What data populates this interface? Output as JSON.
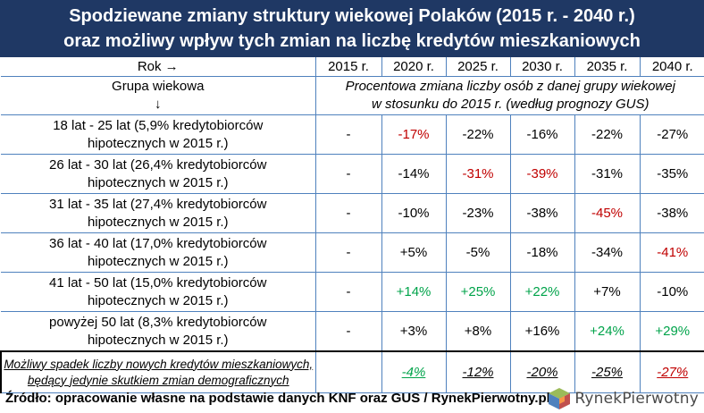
{
  "title": {
    "line1": "Spodziewane zmiany struktury wiekowej Polaków (2015 r. - 2040 r.)",
    "line2": "oraz możliwy wpływ tych zmian na liczbę kredytów mieszkaniowych"
  },
  "header": {
    "rok_label": "Rok →",
    "grupa_label": "Grupa wiekowa",
    "grupa_arrow": "↓",
    "years": [
      "2015 r.",
      "2020 r.",
      "2025 r.",
      "2030 r.",
      "2035 r.",
      "2040 r."
    ],
    "subtitle_line1": "Procentowa zmiana liczby osób z danej grupy wiekowej",
    "subtitle_line2": "w stosunku do 2015 r. (według prognozy GUS)"
  },
  "rows": [
    {
      "label1": "18 lat - 25 lat (5,9% kredytobiorców",
      "label2": "hipotecznych w 2015 r.)",
      "cells": [
        "-",
        "-17%",
        "-22%",
        "-16%",
        "-22%",
        "-27%"
      ]
    },
    {
      "label1": "26 lat - 30 lat (26,4% kredytobiorców",
      "label2": "hipotecznych w 2015 r.)",
      "cells": [
        "-",
        "-14%",
        "-31%",
        "-39%",
        "-31%",
        "-35%"
      ]
    },
    {
      "label1": "31 lat - 35 lat (27,4% kredytobiorców",
      "label2": "hipotecznych w 2015 r.)",
      "cells": [
        "-",
        "-10%",
        "-23%",
        "-38%",
        "-45%",
        "-38%"
      ]
    },
    {
      "label1": "36 lat - 40 lat (17,0% kredytobiorców",
      "label2": "hipotecznych w 2015 r.)",
      "cells": [
        "-",
        "+5%",
        "-5%",
        "-18%",
        "-34%",
        "-41%"
      ]
    },
    {
      "label1": "41 lat - 50 lat (15,0% kredytobiorców",
      "label2": "hipotecznych w 2015 r.)",
      "cells": [
        "-",
        "+14%",
        "+25%",
        "+22%",
        "+7%",
        "-10%"
      ]
    },
    {
      "label1": "powyżej 50 lat (8,3% kredytobiorców",
      "label2": "hipotecznych w 2015 r.)",
      "cells": [
        "-",
        "+3%",
        "+8%",
        "+16%",
        "+24%",
        "+29%"
      ]
    }
  ],
  "loss_row": {
    "label1": "Możliwy spadek liczby nowych kredytów mieszkaniowych,",
    "label2": "będący jedynie skutkiem zmian demograficznych",
    "cells": [
      "",
      "-4%",
      "-12%",
      "-20%",
      "-25%",
      "-27%"
    ]
  },
  "footer": {
    "source": "Źródło: opracowanie własne na podstawie danych KNF oraz GUS / RynekPierwotny.pl",
    "logo_text": "RynekPierwotny"
  },
  "colors": {
    "title_bg": "#1f3864",
    "grid_line": "#4f81bd",
    "highlight_red": "#c00000",
    "highlight_green": "#00a34a"
  },
  "highlights": {
    "red": [
      [
        0,
        1
      ],
      [
        1,
        2
      ],
      [
        1,
        3
      ],
      [
        2,
        4
      ],
      [
        3,
        5
      ],
      [
        6,
        5
      ]
    ],
    "green": [
      [
        4,
        1
      ],
      [
        4,
        2
      ],
      [
        4,
        3
      ],
      [
        5,
        4
      ],
      [
        5,
        5
      ],
      [
        6,
        1
      ]
    ]
  },
  "chart_data": {
    "type": "table",
    "title": "Spodziewane zmiany struktury wiekowej Polaków (2015 r. - 2040 r.) oraz możliwy wpływ tych zmian na liczbę kredytów mieszkaniowych",
    "columns": [
      "2015 r.",
      "2020 r.",
      "2025 r.",
      "2030 r.",
      "2035 r.",
      "2040 r."
    ],
    "series": [
      {
        "name": "18 lat - 25 lat",
        "values": [
          null,
          -17,
          -22,
          -16,
          -22,
          -27
        ]
      },
      {
        "name": "26 lat - 30 lat",
        "values": [
          null,
          -14,
          -31,
          -39,
          -31,
          -35
        ]
      },
      {
        "name": "31 lat - 35 lat",
        "values": [
          null,
          -10,
          -23,
          -38,
          -45,
          -38
        ]
      },
      {
        "name": "36 lat - 40 lat",
        "values": [
          null,
          5,
          -5,
          -18,
          -34,
          -41
        ]
      },
      {
        "name": "41 lat - 50 lat",
        "values": [
          null,
          14,
          25,
          22,
          7,
          -10
        ]
      },
      {
        "name": "powyżej 50 lat",
        "values": [
          null,
          3,
          8,
          16,
          24,
          29
        ]
      },
      {
        "name": "Możliwy spadek liczby nowych kredytów mieszkaniowych",
        "values": [
          null,
          -4,
          -12,
          -20,
          -25,
          -27
        ]
      }
    ]
  }
}
